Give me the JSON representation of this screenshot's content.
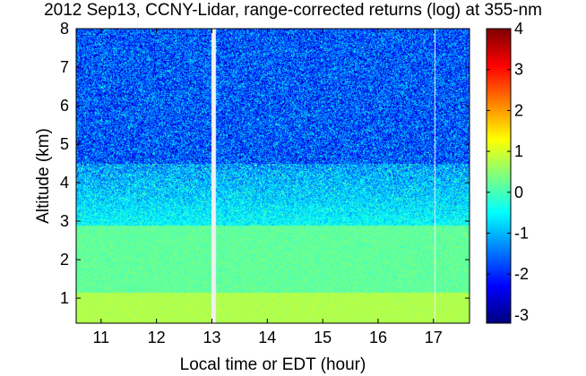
{
  "chart_data": {
    "type": "heatmap",
    "title": "2012 Sep13, CCNY-Lidar, range-corrected returns (log) at 355-nm",
    "xlabel": "Local time or EDT (hour)",
    "ylabel": "Altitude (km)",
    "xlim": [
      10.55,
      17.65
    ],
    "ylim": [
      0.35,
      8.0
    ],
    "x_ticks": [
      11,
      12,
      13,
      14,
      15,
      16,
      17
    ],
    "y_ticks": [
      1,
      2,
      3,
      4,
      5,
      6,
      7,
      8
    ],
    "colorbar": {
      "colormap": "jet",
      "clim": [
        -3.2,
        4
      ],
      "ticks": [
        4,
        3,
        2,
        1,
        0,
        -1,
        -2,
        -3
      ],
      "ticks_display": [
        "4",
        "3",
        "2",
        "1",
        "0",
        "-1",
        "-2",
        "-3"
      ]
    },
    "data_gaps_hours": [
      13.03,
      17.02
    ],
    "layers": [
      {
        "alt_from_km": 0.35,
        "alt_to_km": 1.15,
        "value": 0.75
      },
      {
        "alt_from_km": 1.15,
        "alt_to_km": 2.9,
        "value": 0.2
      },
      {
        "alt_from_km": 2.9,
        "alt_to_km": 4.5,
        "value": -0.8
      },
      {
        "alt_from_km": 4.5,
        "alt_to_km": 8.0,
        "value": -1.7
      }
    ]
  }
}
